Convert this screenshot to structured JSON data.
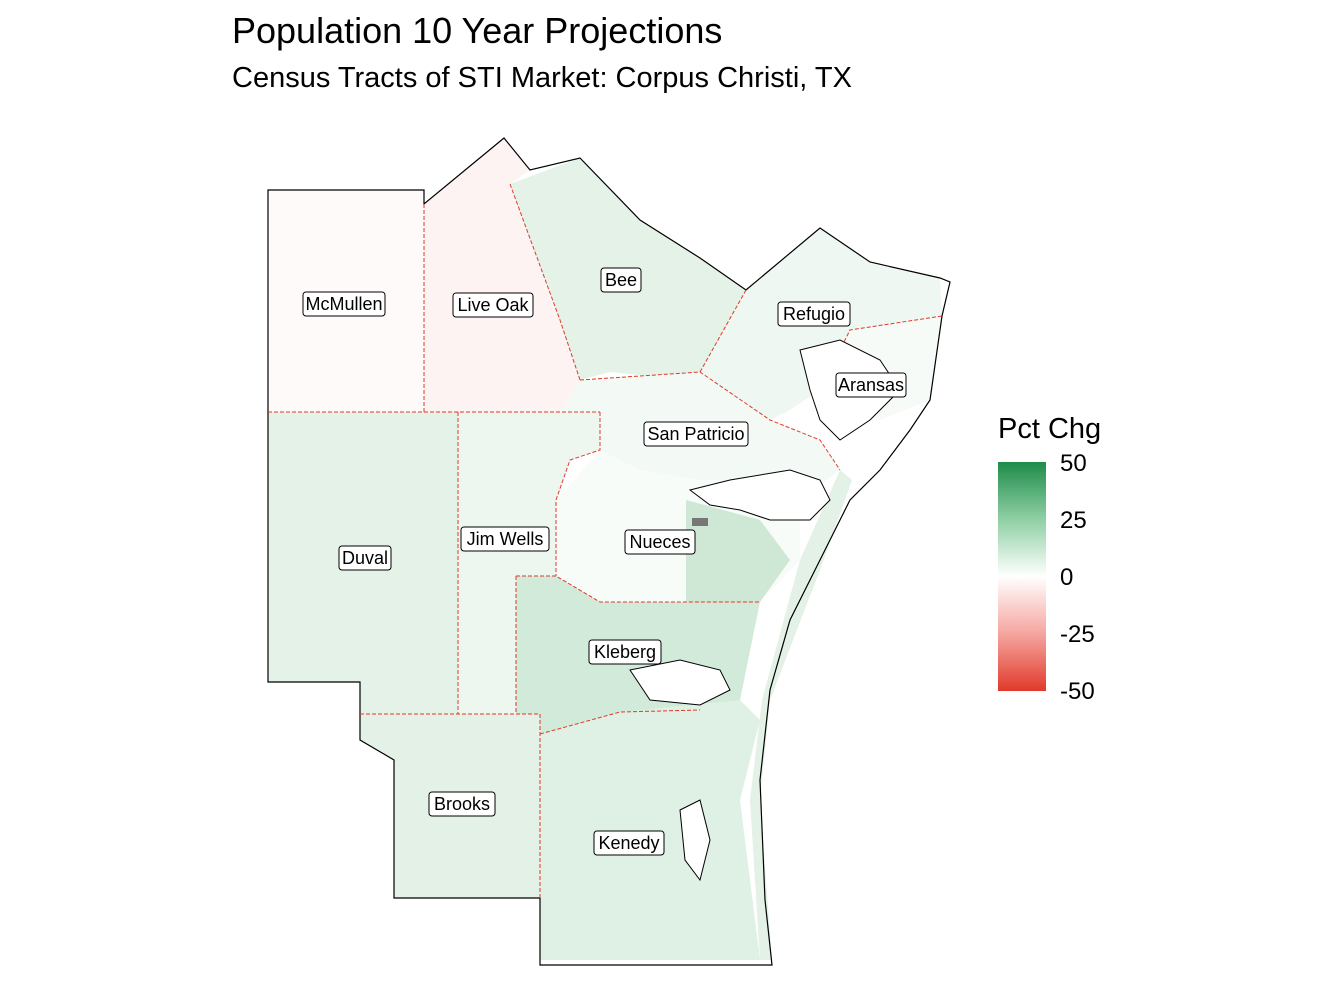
{
  "title": "Population 10 Year Projections",
  "subtitle": "Census Tracts of STI Market: Corpus Christi, TX",
  "legend": {
    "title": "Pct Chg",
    "ticks": [
      "50",
      "25",
      "0",
      "-25",
      "-50"
    ],
    "colors": {
      "high": "#1e8c4a",
      "mid": "#ffffff",
      "low": "#e03a2a"
    }
  },
  "counties": {
    "mcmullen": "McMullen",
    "liveoak": "Live Oak",
    "bee": "Bee",
    "refugio": "Refugio",
    "aransas": "Aransas",
    "sanpatricio": "San Patricio",
    "duval": "Duval",
    "jimwells": "Jim Wells",
    "nueces": "Nueces",
    "kleberg": "Kleberg",
    "brooks": "Brooks",
    "kenedy": "Kenedy"
  }
}
